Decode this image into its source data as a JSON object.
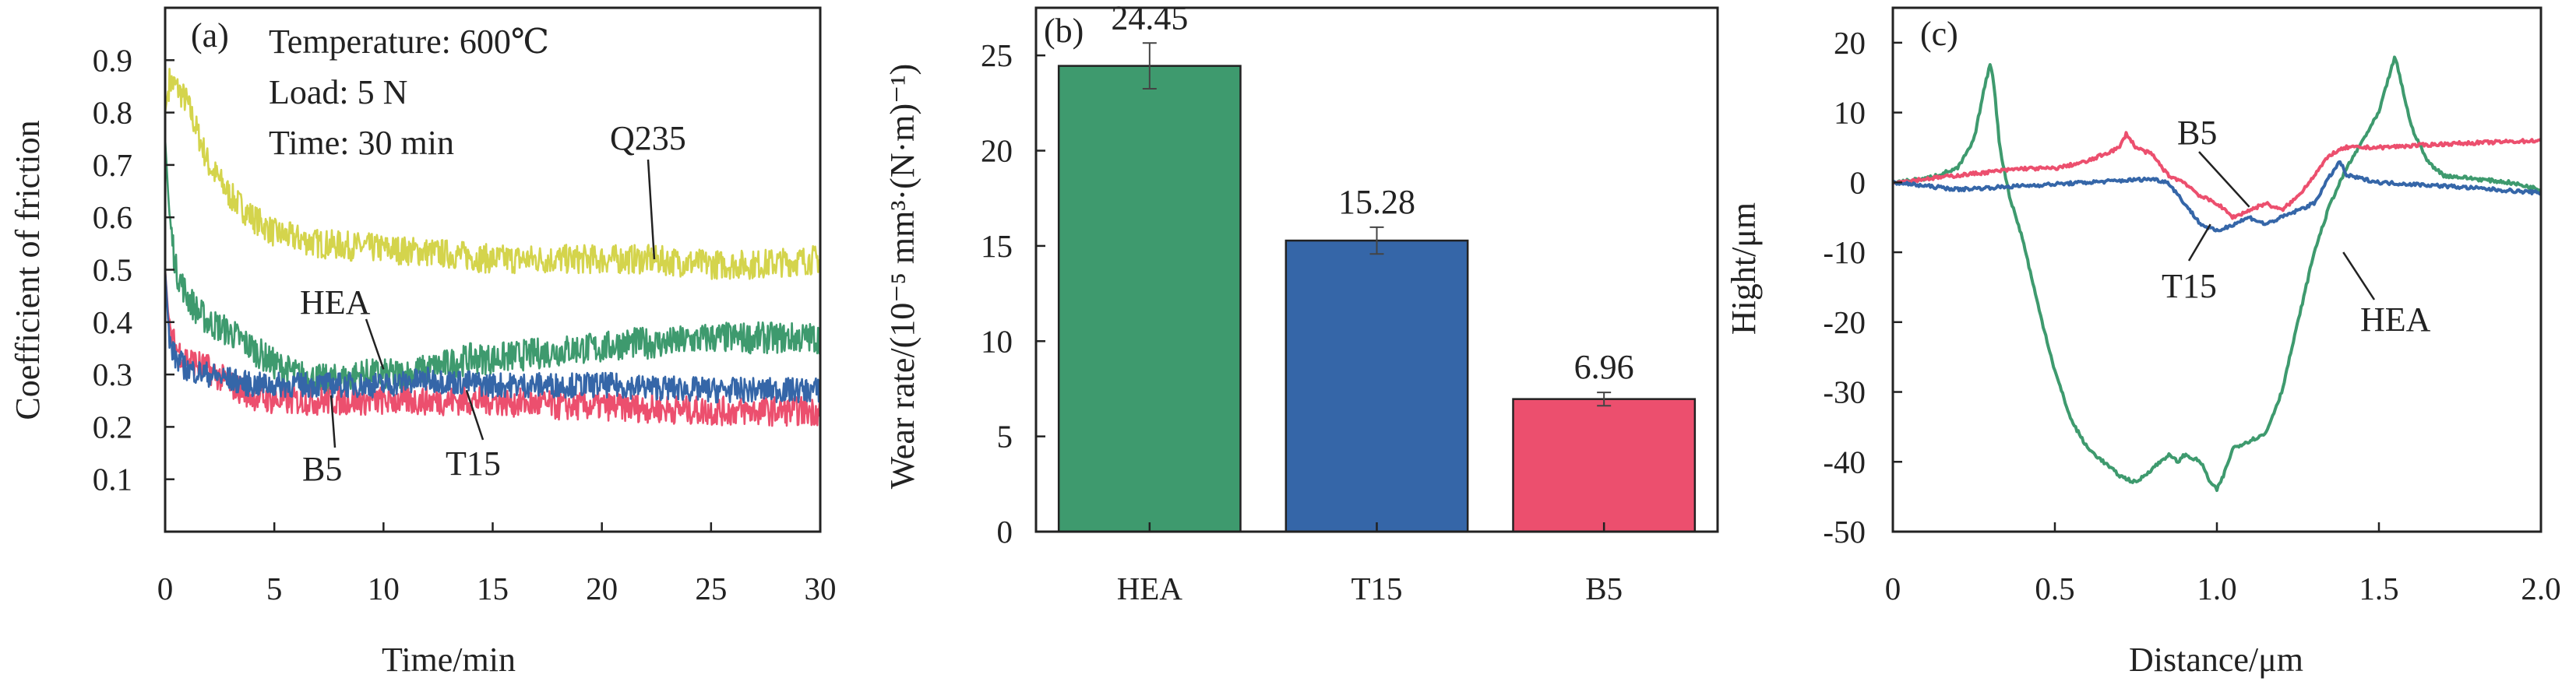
{
  "chart_data": [
    {
      "panel": "(a)",
      "type": "line",
      "xlabel": "Time/min",
      "ylabel": "Coefficient of friction",
      "xlim": [
        0,
        30
      ],
      "ylim": [
        0,
        1.0
      ],
      "xticks": [
        0,
        5,
        10,
        15,
        20,
        25,
        30
      ],
      "yticks": [
        0.1,
        0.2,
        0.3,
        0.4,
        0.5,
        0.6,
        0.7,
        0.8,
        0.9
      ],
      "annotations": [
        "Temperature: 600℃",
        "Load: 5 N",
        "Time: 30 min"
      ],
      "series": [
        {
          "name": "Q235",
          "color": "#d4d44c",
          "x": [
            0.0,
            0.2,
            0.5,
            1.0,
            2.0,
            3.0,
            4.0,
            5.0,
            7.0,
            10.0,
            13.0,
            15.0,
            18.0,
            20.0,
            22.0,
            25.0,
            27.0,
            30.0
          ],
          "y": [
            0.8,
            0.86,
            0.85,
            0.82,
            0.7,
            0.64,
            0.6,
            0.57,
            0.55,
            0.54,
            0.53,
            0.52,
            0.52,
            0.52,
            0.52,
            0.51,
            0.51,
            0.52
          ]
        },
        {
          "name": "HEA",
          "color": "#3e9a6e",
          "x": [
            0.0,
            0.2,
            0.5,
            1.0,
            1.5,
            2.0,
            3.0,
            4.0,
            5.0,
            6.0,
            7.0,
            8.0,
            9.0,
            10.0,
            11.0,
            12.0,
            13.0,
            14.0,
            15.0,
            17.0,
            19.0,
            20.0,
            21.0,
            23.0,
            25.0,
            27.0,
            30.0
          ],
          "y": [
            0.75,
            0.6,
            0.5,
            0.45,
            0.42,
            0.4,
            0.38,
            0.35,
            0.32,
            0.3,
            0.29,
            0.29,
            0.3,
            0.3,
            0.3,
            0.31,
            0.32,
            0.33,
            0.33,
            0.34,
            0.35,
            0.35,
            0.36,
            0.36,
            0.37,
            0.37,
            0.37
          ]
        },
        {
          "name": "T15",
          "color": "#3566a8",
          "x": [
            0.0,
            0.2,
            0.5,
            1.0,
            2.0,
            3.0,
            4.0,
            5.0,
            7.0,
            10.0,
            12.0,
            15.0,
            18.0,
            20.0,
            25.0,
            30.0
          ],
          "y": [
            0.5,
            0.36,
            0.33,
            0.31,
            0.3,
            0.29,
            0.28,
            0.28,
            0.28,
            0.28,
            0.29,
            0.28,
            0.28,
            0.28,
            0.27,
            0.27
          ]
        },
        {
          "name": "B5",
          "color": "#ec4f6e",
          "x": [
            0.0,
            0.2,
            0.5,
            1.0,
            2.0,
            3.0,
            4.0,
            5.0,
            7.0,
            10.0,
            15.0,
            18.0,
            20.0,
            25.0,
            30.0
          ],
          "y": [
            0.5,
            0.38,
            0.35,
            0.33,
            0.31,
            0.28,
            0.26,
            0.25,
            0.25,
            0.25,
            0.25,
            0.24,
            0.24,
            0.23,
            0.23
          ]
        }
      ]
    },
    {
      "panel": "(b)",
      "type": "bar",
      "ylabel": "Wear rate/(10⁻⁵ mm³·(N·m)⁻¹)",
      "categories": [
        "HEA",
        "T15",
        "B5"
      ],
      "values": [
        24.45,
        15.28,
        6.96
      ],
      "value_labels": [
        "24.45",
        "15.28",
        "6.96"
      ],
      "errors": [
        1.2,
        0.7,
        0.35
      ],
      "colors": [
        "#3e9a6e",
        "#3566a8",
        "#ec4f6e"
      ],
      "ylim": [
        0,
        27.5
      ],
      "yticks": [
        0,
        5,
        10,
        15,
        20,
        25
      ]
    },
    {
      "panel": "(c)",
      "type": "line",
      "xlabel": "Distance/μm",
      "ylabel": "Hight/μm",
      "xlim": [
        0,
        2.0
      ],
      "ylim": [
        -50,
        25
      ],
      "xticks": [
        0,
        0.5,
        1.0,
        1.5,
        2.0
      ],
      "xtick_labels": [
        "0",
        "0.5",
        "1.0",
        "1.5",
        "2.0"
      ],
      "yticks": [
        -50,
        -40,
        -30,
        -20,
        -10,
        0,
        10,
        20
      ],
      "series": [
        {
          "name": "HEA",
          "color": "#3e9a6e",
          "x": [
            0.0,
            0.1,
            0.2,
            0.25,
            0.28,
            0.3,
            0.31,
            0.33,
            0.36,
            0.4,
            0.45,
            0.5,
            0.55,
            0.6,
            0.65,
            0.7,
            0.75,
            0.8,
            0.85,
            0.88,
            0.9,
            0.95,
            0.98,
            1.0,
            1.02,
            1.05,
            1.1,
            1.15,
            1.2,
            1.25,
            1.3,
            1.35,
            1.4,
            1.45,
            1.5,
            1.53,
            1.55,
            1.57,
            1.6,
            1.65,
            1.7,
            1.8,
            1.9,
            2.0
          ],
          "y": [
            0,
            0.5,
            2,
            6,
            13,
            17,
            15,
            5,
            -2,
            -8,
            -18,
            -27,
            -34,
            -38,
            -40,
            -42,
            -43,
            -41,
            -39,
            -40,
            -39,
            -40,
            -43,
            -44,
            -42,
            -38,
            -37,
            -36,
            -30,
            -20,
            -10,
            -3,
            2,
            6,
            10,
            15,
            18,
            14,
            8,
            3,
            1,
            0.5,
            0,
            -1
          ]
        },
        {
          "name": "T15",
          "color": "#3566a8",
          "x": [
            0.0,
            0.1,
            0.2,
            0.4,
            0.6,
            0.8,
            0.85,
            0.9,
            0.95,
            1.0,
            1.05,
            1.1,
            1.15,
            1.2,
            1.25,
            1.3,
            1.35,
            1.38,
            1.4,
            1.5,
            1.7,
            2.0
          ],
          "y": [
            0,
            -0.5,
            -1,
            -0.5,
            0,
            0.5,
            0,
            -3,
            -6,
            -7,
            -6,
            -5,
            -6,
            -5,
            -4,
            -3,
            1,
            3,
            1,
            0,
            -0.5,
            -1.5
          ]
        },
        {
          "name": "B5",
          "color": "#ec4f6e",
          "x": [
            0.0,
            0.1,
            0.2,
            0.3,
            0.4,
            0.5,
            0.6,
            0.65,
            0.7,
            0.72,
            0.75,
            0.8,
            0.85,
            0.9,
            0.95,
            1.0,
            1.05,
            1.1,
            1.15,
            1.2,
            1.25,
            1.3,
            1.35,
            1.4,
            1.5,
            1.7,
            2.0
          ],
          "y": [
            0,
            0.5,
            1,
            1.5,
            2,
            2,
            3,
            4,
            5,
            7,
            5,
            4,
            1,
            0,
            -2,
            -3,
            -5,
            -4,
            -3,
            -4,
            -2,
            1,
            4,
            5,
            5,
            5.5,
            6
          ]
        }
      ],
      "labels": [
        "B5",
        "T15",
        "HEA"
      ]
    }
  ]
}
